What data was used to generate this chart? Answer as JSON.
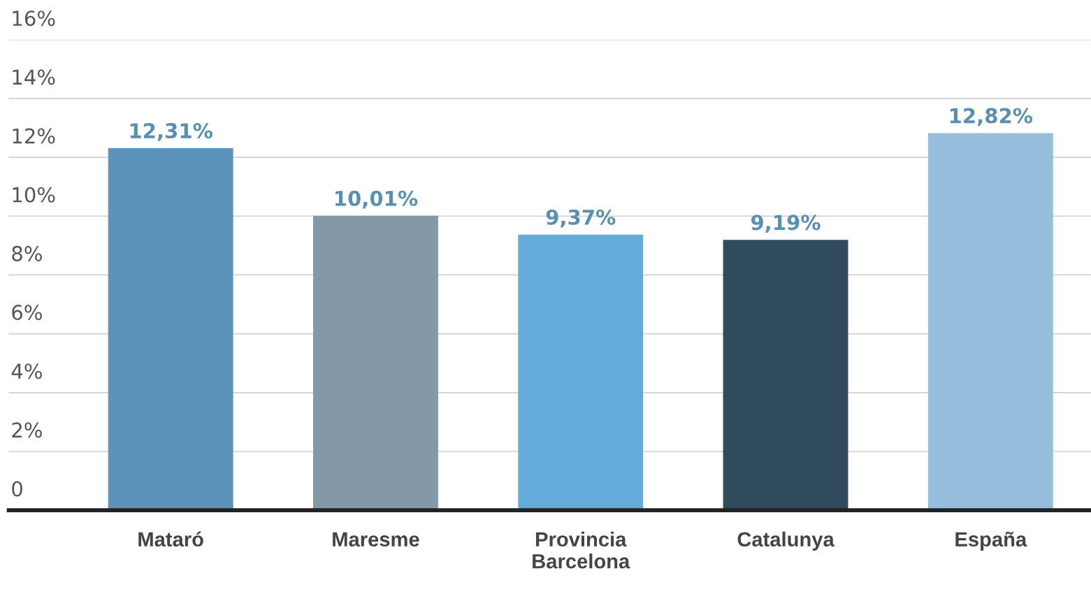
{
  "chart_data": {
    "type": "bar",
    "categories": [
      "Mataró",
      "Maresme",
      "Provincia\nBarcelona",
      "Catalunya",
      "España"
    ],
    "values": [
      12.31,
      10.01,
      9.37,
      9.19,
      12.82
    ],
    "colors": [
      "#5b93bb",
      "#8399a8",
      "#63acd9",
      "#2f4b5c",
      "#97bfdd"
    ],
    "value_labels": [
      "12,31%",
      "10,01%",
      "9,37%",
      "9,19%",
      "12,82%"
    ],
    "ylim": [
      0,
      16
    ],
    "yticks": [
      {
        "value": 0,
        "label": "0"
      },
      {
        "value": 2,
        "label": "2%"
      },
      {
        "value": 4,
        "label": "4%"
      },
      {
        "value": 6,
        "label": "6%"
      },
      {
        "value": 8,
        "label": "8%"
      },
      {
        "value": 10,
        "label": "10%"
      },
      {
        "value": 12,
        "label": "12%"
      },
      {
        "value": 14,
        "label": "14%"
      },
      {
        "value": 16,
        "label": "16%"
      }
    ],
    "grid": "y",
    "legend": false
  }
}
